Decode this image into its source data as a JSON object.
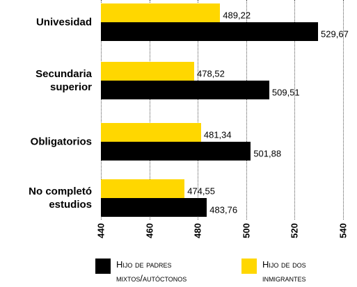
{
  "chart_data": {
    "type": "bar",
    "orientation": "horizontal",
    "categories": [
      "Univesidad",
      "Secundaria superior",
      "Obligatorios",
      "No completó estudios"
    ],
    "series": [
      {
        "name": "Hijo de dos inmigrantes",
        "color": "#ffd700",
        "values": [
          489.22,
          478.52,
          481.34,
          474.55
        ],
        "value_labels": [
          "489,22",
          "478,52",
          "481,34",
          "474,55"
        ]
      },
      {
        "name": "Hijo de padres mixtos/autóctonos",
        "color": "#000000",
        "values": [
          529.67,
          509.51,
          501.88,
          483.76
        ],
        "value_labels": [
          "529,67",
          "509,51",
          "501,88",
          "483,76"
        ]
      }
    ],
    "xlim": [
      440,
      545.7
    ],
    "xticks": [
      440,
      460,
      480,
      500,
      520,
      540
    ],
    "grid": true
  }
}
